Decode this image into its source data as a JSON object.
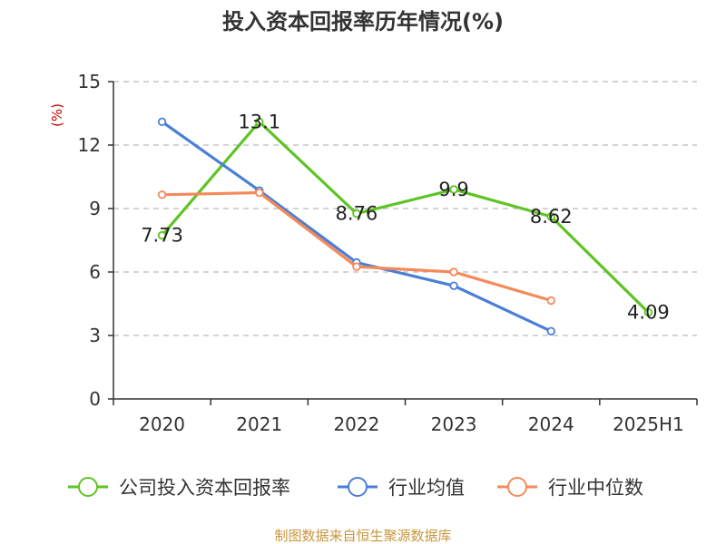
{
  "chart_data": {
    "type": "line",
    "title": "投入资本回报率历年情况(%)",
    "ylabel": "(%)",
    "categories": [
      "2020",
      "2021",
      "2022",
      "2023",
      "2024",
      "2025H1"
    ],
    "yticks": [
      "0",
      "3",
      "6",
      "9",
      "12",
      "15"
    ],
    "ylim": [
      0,
      15
    ],
    "grid": true,
    "legend_position": "bottom",
    "series": [
      {
        "name": "公司投入资本回报率",
        "color": "#5ec424",
        "values": [
          7.73,
          13.1,
          8.76,
          9.9,
          8.62,
          4.09
        ],
        "labels": [
          "7.73",
          "13.1",
          "8.76",
          "9.9",
          "8.62",
          "4.09"
        ]
      },
      {
        "name": "行业均值",
        "color": "#4a7fd6",
        "values": [
          13.1,
          9.85,
          6.45,
          5.35,
          3.2,
          null
        ]
      },
      {
        "name": "行业中位数",
        "color": "#f5895a",
        "values": [
          9.65,
          9.75,
          6.25,
          6.0,
          4.65,
          null
        ]
      }
    ]
  },
  "source": "制图数据来自恒生聚源数据库"
}
